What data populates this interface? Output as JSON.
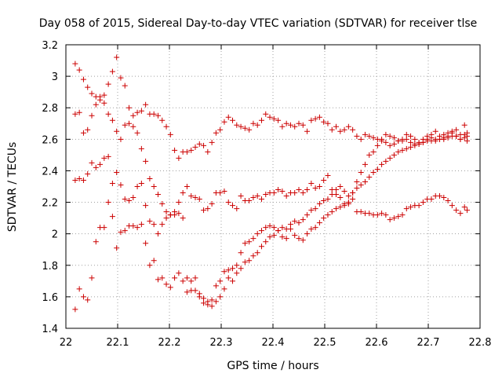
{
  "chart_data": {
    "type": "scatter",
    "title": "Day 058 of 2015, Sidereal Day-to-day VTEC variation (SDTVAR) for receiver tlse",
    "xlabel": "GPS time / hours",
    "ylabel": "SDTVAR / TECUs",
    "xlim": [
      22.0,
      22.8
    ],
    "ylim": [
      1.4,
      3.2
    ],
    "xticks": [
      "22",
      "22.1",
      "22.2",
      "22.3",
      "22.4",
      "22.5",
      "22.6",
      "22.7",
      "22.8"
    ],
    "yticks": [
      "1.4",
      "1.6",
      "1.8",
      "2",
      "2.2",
      "2.4",
      "2.6",
      "2.8",
      "3",
      "3.2"
    ],
    "grid": true,
    "marker": "+",
    "color": "#cc0000",
    "series": [
      {
        "x": [
          22.018,
          22.026,
          22.034,
          22.042,
          22.05,
          22.058,
          22.066,
          22.074,
          22.082,
          22.09,
          22.098,
          22.106,
          22.114,
          22.122,
          22.13,
          22.138,
          22.146,
          22.154,
          22.162,
          22.17,
          22.178,
          22.186,
          22.194,
          22.202,
          22.21,
          22.218,
          22.226,
          22.234,
          22.242,
          22.25,
          22.258,
          22.266,
          22.274,
          22.282,
          22.29,
          22.298,
          22.306,
          22.314,
          22.322,
          22.33,
          22.338,
          22.346,
          22.354,
          22.362,
          22.37,
          22.378,
          22.386,
          22.394,
          22.402,
          22.41,
          22.418,
          22.426,
          22.434,
          22.442,
          22.45,
          22.458,
          22.466,
          22.474,
          22.482,
          22.49,
          22.498,
          22.506,
          22.514,
          22.522,
          22.53,
          22.538,
          22.546,
          22.554,
          22.562,
          22.57,
          22.578,
          22.586,
          22.594,
          22.602,
          22.61,
          22.618,
          22.626,
          22.634,
          22.642,
          22.65,
          22.658,
          22.666,
          22.674,
          22.682,
          22.69,
          22.698,
          22.706,
          22.714,
          22.722,
          22.73,
          22.738,
          22.746,
          22.754,
          22.762,
          22.77,
          22.775
        ],
        "y": [
          3.08,
          3.04,
          2.98,
          2.93,
          2.89,
          2.87,
          2.85,
          2.88,
          2.95,
          3.03,
          3.12,
          2.99,
          2.94,
          2.8,
          2.75,
          2.77,
          2.78,
          2.82,
          2.76,
          2.76,
          2.75,
          2.72,
          2.68,
          2.63,
          2.53,
          2.48,
          2.52,
          2.52,
          2.53,
          2.55,
          2.57,
          2.56,
          2.52,
          2.58,
          2.64,
          2.66,
          2.71,
          2.74,
          2.72,
          2.69,
          2.68,
          2.67,
          2.66,
          2.7,
          2.69,
          2.72,
          2.76,
          2.74,
          2.73,
          2.72,
          2.68,
          2.7,
          2.69,
          2.68,
          2.7,
          2.69,
          2.65,
          2.72,
          2.73,
          2.74,
          2.71,
          2.7,
          2.66,
          2.68,
          2.65,
          2.66,
          2.68,
          2.66,
          2.62,
          2.6,
          2.63,
          2.62,
          2.61,
          2.6,
          2.59,
          2.58,
          2.56,
          2.57,
          2.59,
          2.6,
          2.63,
          2.62,
          2.6,
          2.57,
          2.58,
          2.6,
          2.61,
          2.59,
          2.6,
          2.63,
          2.64,
          2.65,
          2.62,
          2.6,
          2.69,
          2.59
        ]
      },
      {
        "x": [
          22.018,
          22.026,
          22.034,
          22.042,
          22.05,
          22.058,
          22.066,
          22.074,
          22.082,
          22.09,
          22.098,
          22.106,
          22.114,
          22.122,
          22.13,
          22.138,
          22.146,
          22.154,
          22.162,
          22.17,
          22.178,
          22.186,
          22.194,
          22.202,
          22.21,
          22.218,
          22.226,
          22.234,
          22.242,
          22.25,
          22.258,
          22.266,
          22.274,
          22.282,
          22.29,
          22.298,
          22.306,
          22.314,
          22.322,
          22.33,
          22.338,
          22.346,
          22.354,
          22.362,
          22.37,
          22.378,
          22.386,
          22.394,
          22.402,
          22.41,
          22.418,
          22.426,
          22.434,
          22.442,
          22.45,
          22.458,
          22.466,
          22.474,
          22.482,
          22.49,
          22.498,
          22.506,
          22.514,
          22.522,
          22.53,
          22.538,
          22.546,
          22.554,
          22.562,
          22.57,
          22.578,
          22.586,
          22.594,
          22.602,
          22.61,
          22.618,
          22.626,
          22.634,
          22.642,
          22.65,
          22.658,
          22.666,
          22.674,
          22.682,
          22.69,
          22.698,
          22.706,
          22.714,
          22.722,
          22.73,
          22.738,
          22.746,
          22.754,
          22.762,
          22.77,
          22.775
        ],
        "y": [
          2.76,
          2.77,
          2.64,
          2.66,
          2.75,
          2.82,
          2.87,
          2.83,
          2.76,
          2.72,
          2.65,
          2.6,
          2.69,
          2.7,
          2.68,
          2.64,
          2.54,
          2.46,
          2.35,
          2.3,
          2.25,
          2.19,
          2.14,
          2.12,
          2.14,
          2.2,
          2.26,
          2.3,
          2.24,
          2.23,
          2.22,
          2.15,
          2.16,
          2.19,
          2.26,
          2.26,
          2.27,
          2.2,
          2.18,
          2.16,
          2.24,
          2.21,
          2.21,
          2.23,
          2.24,
          2.22,
          2.25,
          2.26,
          2.26,
          2.28,
          2.27,
          2.24,
          2.26,
          2.26,
          2.28,
          2.26,
          2.28,
          2.32,
          2.29,
          2.3,
          2.34,
          2.37,
          2.28,
          2.25,
          2.23,
          2.19,
          2.2,
          2.26,
          2.33,
          2.39,
          2.44,
          2.5,
          2.52,
          2.56,
          2.6,
          2.63,
          2.62,
          2.61,
          2.59,
          2.59,
          2.6,
          2.58,
          2.57,
          2.58,
          2.6,
          2.62,
          2.63,
          2.65,
          2.62,
          2.6,
          2.62,
          2.64,
          2.66,
          2.6,
          2.61,
          2.62
        ]
      },
      {
        "x": [
          22.018,
          22.026,
          22.034,
          22.042,
          22.05,
          22.058,
          22.066,
          22.074,
          22.082,
          22.09,
          22.098,
          22.106,
          22.114,
          22.122,
          22.13,
          22.138,
          22.146,
          22.154,
          22.162,
          22.17,
          22.178,
          22.186,
          22.194,
          22.202,
          22.21,
          22.218,
          22.226,
          22.234,
          22.242,
          22.25,
          22.258,
          22.266,
          22.274,
          22.282,
          22.29,
          22.298,
          22.306,
          22.314,
          22.322,
          22.33,
          22.338,
          22.346,
          22.354,
          22.362,
          22.37,
          22.378,
          22.386,
          22.394,
          22.402,
          22.41,
          22.418,
          22.426,
          22.434,
          22.442,
          22.45,
          22.458,
          22.466,
          22.474,
          22.482,
          22.49,
          22.498,
          22.506,
          22.514,
          22.522,
          22.53,
          22.538,
          22.546,
          22.554,
          22.562,
          22.57,
          22.578,
          22.586,
          22.594,
          22.602,
          22.61,
          22.618,
          22.626,
          22.634,
          22.642,
          22.65,
          22.658,
          22.666,
          22.674,
          22.682,
          22.69,
          22.698,
          22.706,
          22.714,
          22.722,
          22.73,
          22.738,
          22.746,
          22.754,
          22.762,
          22.77,
          22.775
        ],
        "y": [
          2.34,
          2.35,
          2.34,
          2.38,
          2.45,
          2.42,
          2.44,
          2.48,
          2.49,
          2.11,
          1.91,
          2.01,
          2.02,
          2.05,
          2.05,
          2.04,
          2.06,
          1.94,
          2.08,
          2.06,
          2.0,
          2.06,
          2.1,
          2.12,
          2.12,
          2.13,
          2.1,
          1.72,
          1.7,
          1.72,
          1.62,
          1.59,
          1.57,
          1.58,
          1.67,
          1.7,
          1.76,
          1.77,
          1.78,
          1.8,
          1.88,
          1.94,
          1.95,
          1.97,
          2.0,
          2.02,
          2.04,
          2.05,
          2.04,
          2.02,
          1.98,
          1.97,
          2.03,
          1.99,
          1.97,
          1.96,
          2.0,
          2.03,
          2.04,
          2.07,
          2.1,
          2.12,
          2.14,
          2.16,
          2.17,
          2.18,
          2.19,
          2.22,
          2.14,
          2.14,
          2.13,
          2.13,
          2.12,
          2.12,
          2.13,
          2.12,
          2.09,
          2.1,
          2.11,
          2.12,
          2.16,
          2.17,
          2.18,
          2.18,
          2.2,
          2.22,
          2.22,
          2.24,
          2.24,
          2.23,
          2.21,
          2.18,
          2.15,
          2.13,
          2.17,
          2.15
        ]
      },
      {
        "x": [
          22.018,
          22.026,
          22.034,
          22.042,
          22.05,
          22.058,
          22.066,
          22.074,
          22.082,
          22.09,
          22.098,
          22.106,
          22.114,
          22.122,
          22.13,
          22.138,
          22.146,
          22.154,
          22.162,
          22.17,
          22.178,
          22.186,
          22.194,
          22.202,
          22.21,
          22.218,
          22.226,
          22.234,
          22.242,
          22.25,
          22.258,
          22.266,
          22.274,
          22.282,
          22.29,
          22.298,
          22.306,
          22.314,
          22.322,
          22.33,
          22.338,
          22.346,
          22.354,
          22.362,
          22.37,
          22.378,
          22.386,
          22.394,
          22.402,
          22.41,
          22.418,
          22.426,
          22.434,
          22.442,
          22.45,
          22.458,
          22.466,
          22.474,
          22.482,
          22.49,
          22.498,
          22.506,
          22.514,
          22.522,
          22.53,
          22.538,
          22.546,
          22.554,
          22.562,
          22.57,
          22.578,
          22.586,
          22.594,
          22.602,
          22.61,
          22.618,
          22.626,
          22.634,
          22.642,
          22.65,
          22.658,
          22.666,
          22.674,
          22.682,
          22.69,
          22.698,
          22.706,
          22.714,
          22.722,
          22.73,
          22.738,
          22.746,
          22.754,
          22.762,
          22.77,
          22.775
        ],
        "y": [
          1.52,
          1.65,
          1.6,
          1.58,
          1.72,
          1.95,
          2.04,
          2.04,
          2.2,
          2.32,
          2.39,
          2.31,
          2.22,
          2.21,
          2.23,
          2.3,
          2.32,
          2.18,
          1.8,
          1.83,
          1.71,
          1.72,
          1.68,
          1.66,
          1.72,
          1.75,
          1.7,
          1.63,
          1.64,
          1.64,
          1.6,
          1.56,
          1.55,
          1.54,
          1.57,
          1.6,
          1.65,
          1.72,
          1.7,
          1.75,
          1.78,
          1.82,
          1.83,
          1.86,
          1.88,
          1.92,
          1.95,
          1.98,
          1.99,
          2.02,
          2.04,
          2.03,
          2.06,
          2.08,
          2.07,
          2.09,
          2.12,
          2.15,
          2.16,
          2.19,
          2.21,
          2.22,
          2.25,
          2.28,
          2.3,
          2.27,
          2.24,
          2.26,
          2.29,
          2.31,
          2.33,
          2.36,
          2.39,
          2.41,
          2.44,
          2.46,
          2.48,
          2.5,
          2.52,
          2.53,
          2.54,
          2.55,
          2.56,
          2.57,
          2.58,
          2.59,
          2.59,
          2.6,
          2.6,
          2.61,
          2.61,
          2.62,
          2.62,
          2.63,
          2.63,
          2.64
        ]
      }
    ]
  }
}
